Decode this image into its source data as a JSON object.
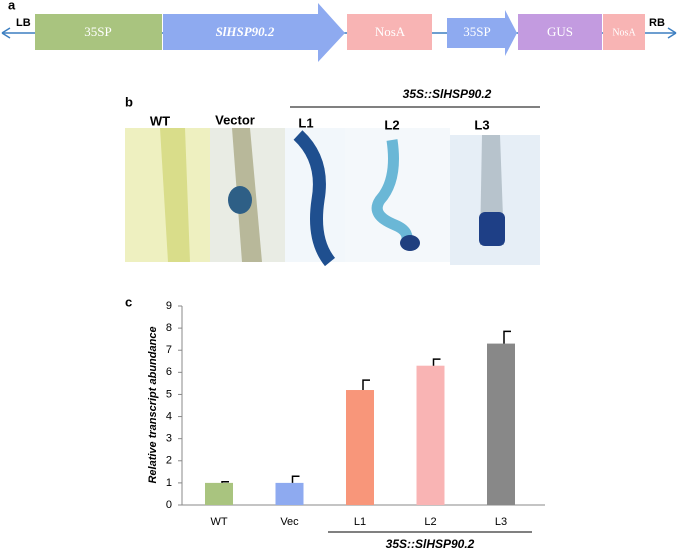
{
  "panel_a": {
    "label": "a",
    "left_border": "LB",
    "right_border": "RB",
    "elements": [
      "35SP",
      "SlHSP90.2",
      "NosA",
      "35SP",
      "GUS",
      "NosA"
    ]
  },
  "panel_b": {
    "label": "b",
    "group": "35S::SlHSP90.2",
    "lanes": [
      "WT",
      "Vector",
      "L1",
      "L2",
      "L3"
    ]
  },
  "chart_data": {
    "type": "bar",
    "panel_label": "c",
    "y_label": "Relative transcript abundance",
    "categories": [
      "WT",
      "Vec",
      "L1",
      "L2",
      "L3"
    ],
    "values": [
      1.0,
      1.0,
      5.2,
      6.3,
      7.3
    ],
    "errors": [
      0.05,
      0.3,
      0.45,
      0.3,
      0.55
    ],
    "colors": [
      "#a9c47f",
      "#8eaaf0",
      "#f8967a",
      "#f9b4b4",
      "#888888"
    ],
    "group_label": "35S::SlHSP90.2",
    "ylim": [
      0,
      9
    ],
    "yticks": [
      0,
      1,
      2,
      3,
      4,
      5,
      6,
      7,
      8,
      9
    ],
    "grid": false
  }
}
